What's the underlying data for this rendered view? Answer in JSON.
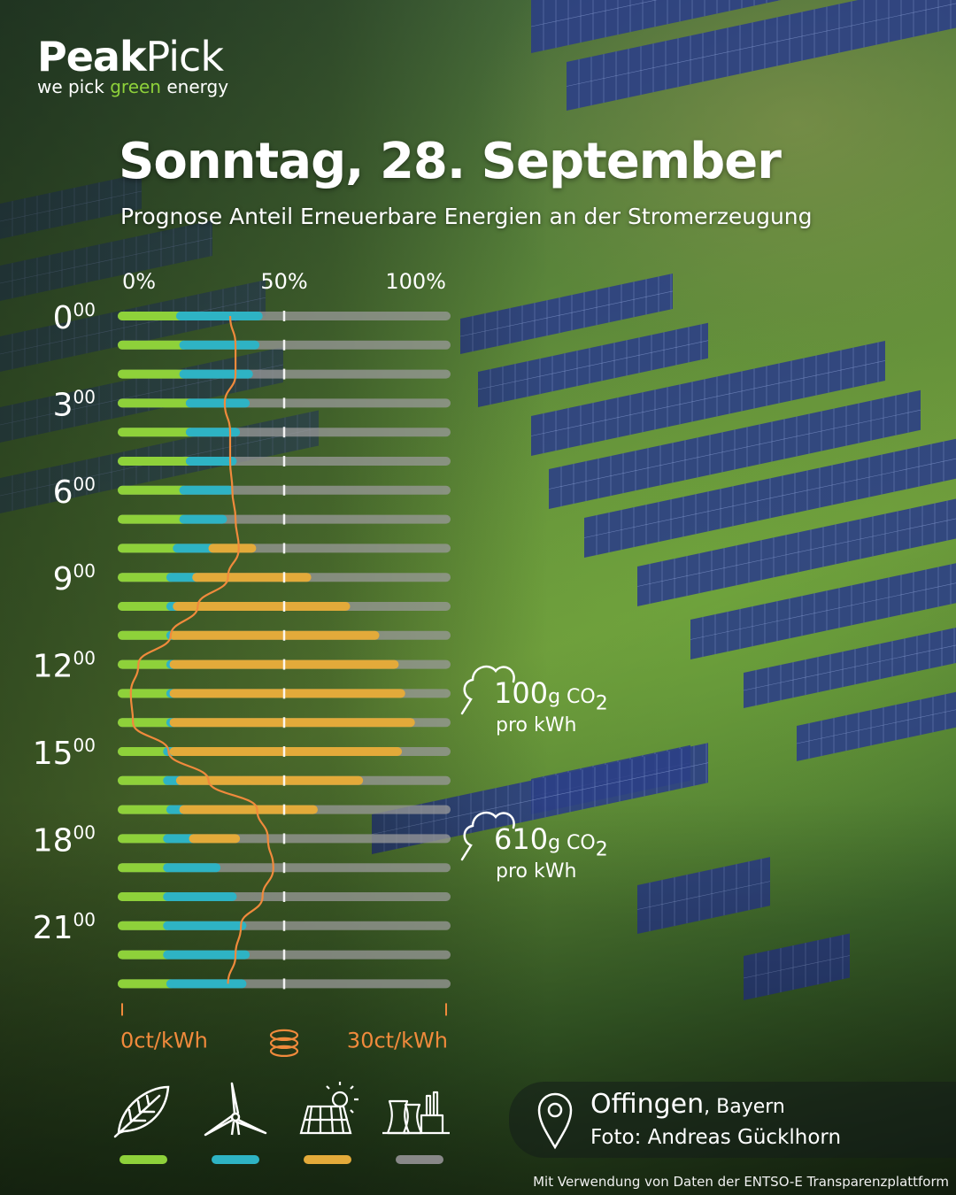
{
  "brand": {
    "name_bold": "Peak",
    "name_thin": "Pick",
    "tagline_pre": "we pick ",
    "tagline_green": "green",
    "tagline_post": " energy"
  },
  "header": {
    "title": "Sonntag, 28. September",
    "subtitle": "Prognose Anteil Erneuerbare Energien an der Stromerzeugung"
  },
  "colors": {
    "biomass": "#8ed13a",
    "wind": "#2eb3c4",
    "solar": "#e3aa3a",
    "fossil": "#888888",
    "price": "#f08a3c"
  },
  "chart_data": {
    "type": "bar",
    "orientation": "horizontal-stacked",
    "top_axis_ticks": [
      "0%",
      "50%",
      "100%"
    ],
    "bottom_axis_ticks": [
      "0ct/kWh",
      "30ct/kWh"
    ],
    "xlim": [
      0,
      100
    ],
    "price_lim": [
      0,
      30
    ],
    "hour_labels": [
      {
        "hour": 0,
        "main": "0",
        "sup": "00"
      },
      {
        "hour": 3,
        "main": "3",
        "sup": "00"
      },
      {
        "hour": 6,
        "main": "6",
        "sup": "00"
      },
      {
        "hour": 9,
        "main": "9",
        "sup": "00"
      },
      {
        "hour": 12,
        "main": "12",
        "sup": "00"
      },
      {
        "hour": 15,
        "main": "15",
        "sup": "00"
      },
      {
        "hour": 18,
        "main": "18",
        "sup": "00"
      },
      {
        "hour": 21,
        "main": "21",
        "sup": "00"
      }
    ],
    "categories": [
      "0",
      "1",
      "2",
      "3",
      "4",
      "5",
      "6",
      "7",
      "8",
      "9",
      "10",
      "11",
      "12",
      "13",
      "14",
      "15",
      "16",
      "17",
      "18",
      "19",
      "20",
      "21",
      "22",
      "23"
    ],
    "series": [
      {
        "name": "Biomasse",
        "color_key": "biomass",
        "values": [
          18,
          19,
          19,
          21,
          21,
          21,
          19,
          19,
          17,
          15,
          15,
          15,
          15,
          15,
          15,
          14,
          14,
          15,
          14,
          14,
          14,
          14,
          14,
          15
        ]
      },
      {
        "name": "Wind",
        "color_key": "wind",
        "values": [
          24,
          22,
          20,
          17,
          14,
          13,
          14,
          12,
          11,
          8,
          2,
          1,
          1,
          1,
          1,
          2,
          4,
          4,
          8,
          15,
          20,
          23,
          24,
          22
        ]
      },
      {
        "name": "Solar",
        "color_key": "solar",
        "values": [
          0,
          0,
          0,
          0,
          0,
          0,
          0,
          0,
          12,
          34,
          52,
          62,
          68,
          70,
          73,
          69,
          55,
          40,
          13,
          0,
          0,
          0,
          0,
          0
        ]
      }
    ],
    "price": {
      "name": "Strompreis",
      "unit": "ct/kWh",
      "values": [
        10,
        10.5,
        10.5,
        9.5,
        10,
        10,
        10.2,
        10.5,
        10.8,
        9.8,
        7,
        4.5,
        1.5,
        0.8,
        1,
        4.3,
        8,
        12.5,
        13.5,
        14,
        13,
        11,
        10.5,
        9.8
      ]
    }
  },
  "co2_labels": [
    {
      "value": "100",
      "unit": "g CO",
      "sub": "2",
      "per": "pro kWh"
    },
    {
      "value": "610",
      "unit": "g CO",
      "sub": "2",
      "per": "pro kWh"
    }
  ],
  "legend": [
    {
      "icon": "leaf-icon",
      "color_key": "biomass"
    },
    {
      "icon": "wind-turbine-icon",
      "color_key": "wind"
    },
    {
      "icon": "solar-panel-icon",
      "color_key": "solar"
    },
    {
      "icon": "power-plant-icon",
      "color_key": "fossil"
    }
  ],
  "location": {
    "name": "Offingen",
    "region": ", Bayern",
    "photo": "Foto: Andreas Gücklhorn"
  },
  "footnote": "Mit Verwendung von Daten der ENTSO-E Transparenzplattform"
}
